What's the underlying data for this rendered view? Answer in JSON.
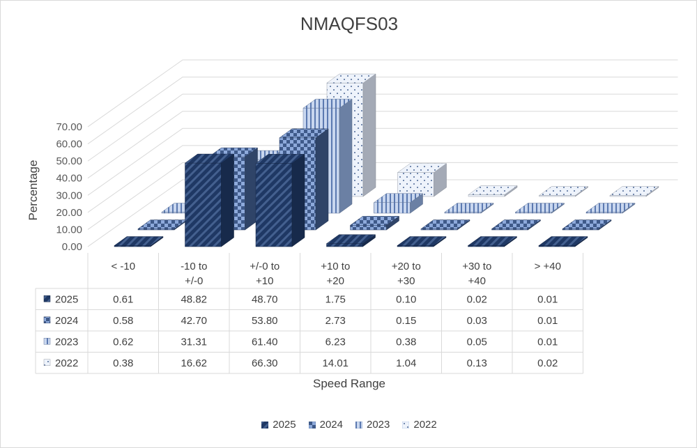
{
  "chart_data": {
    "type": "bar",
    "title": "NMAQFS03",
    "xlabel": "Speed Range",
    "ylabel": "Percentage",
    "ylim": [
      0,
      70
    ],
    "yticks": [
      "0.00",
      "10.00",
      "20.00",
      "30.00",
      "40.00",
      "50.00",
      "60.00",
      "70.00"
    ],
    "categories": [
      "< -10",
      "-10 to +/-0",
      "+/-0 to +10",
      "+10 to +20",
      "+20 to +30",
      "+30 to +40",
      "> +40"
    ],
    "series": [
      {
        "name": "2025",
        "values": [
          0.61,
          48.82,
          48.7,
          1.75,
          0.1,
          0.02,
          0.01
        ],
        "labels": [
          "0.61",
          "48.82",
          "48.70",
          "1.75",
          "0.10",
          "0.02",
          "0.01"
        ],
        "color": "#1f3864"
      },
      {
        "name": "2024",
        "values": [
          0.58,
          42.7,
          53.8,
          2.73,
          0.15,
          0.03,
          0.01
        ],
        "labels": [
          "0.58",
          "42.70",
          "53.80",
          "2.73",
          "0.15",
          "0.03",
          "0.01"
        ],
        "color": "#3f5a8a"
      },
      {
        "name": "2023",
        "values": [
          0.62,
          31.31,
          61.4,
          6.23,
          0.38,
          0.05,
          0.01
        ],
        "labels": [
          "0.62",
          "31.31",
          "61.40",
          "6.23",
          "0.38",
          "0.05",
          "0.01"
        ],
        "color": "#8eaadb"
      },
      {
        "name": "2022",
        "values": [
          0.38,
          16.62,
          66.3,
          14.01,
          1.04,
          0.13,
          0.02
        ],
        "labels": [
          "0.38",
          "16.62",
          "66.30",
          "14.01",
          "1.04",
          "0.13",
          "0.02"
        ],
        "color": "#dae3f3"
      }
    ],
    "grid": true,
    "legend_position": "bottom",
    "data_table": true
  }
}
